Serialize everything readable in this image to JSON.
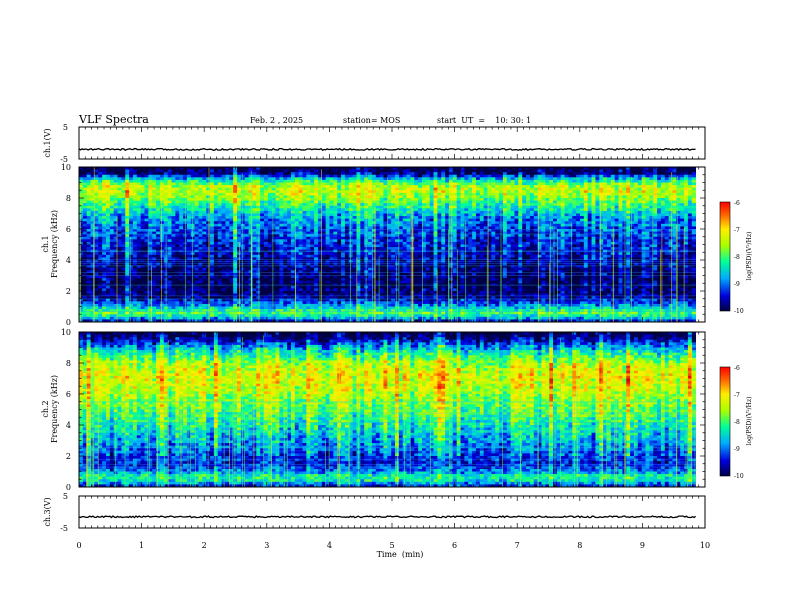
{
  "header": {
    "title": "VLF Spectra",
    "date": "Feb. 2  , 2025",
    "station": "station= MOS",
    "start": "start  UT  =    10: 30: 1"
  },
  "colors": {
    "spectrogram_scale": [
      "#000044",
      "#0000dd",
      "#00aaff",
      "#00ff99",
      "#aaff00",
      "#ffee00",
      "#ff6600",
      "#dd0000"
    ],
    "background": "#ffffff",
    "frame": "#000000"
  },
  "chart_data": [
    {
      "type": "line",
      "panel": "ch1-waveform",
      "ylabel": "ch.1(V)",
      "ylim": [
        -5,
        5
      ],
      "yticks": [
        "5",
        "-5"
      ],
      "x": [
        0,
        1,
        2,
        3,
        4,
        5,
        6,
        7,
        8,
        9,
        9.85
      ],
      "values": [
        -2,
        -2,
        -2,
        -2,
        -2,
        -2,
        -2,
        -2,
        -2,
        -2,
        -2
      ]
    },
    {
      "type": "heatmap",
      "panel": "ch1-spectrogram",
      "ylabel": "ch.1\nFrequency  (kHz)",
      "ylim": [
        0,
        10
      ],
      "yticks": [
        "0",
        "2",
        "4",
        "6",
        "8",
        "10"
      ],
      "xlim": [
        0,
        10
      ],
      "data_xmax": 9.85,
      "colorbar": {
        "label": "log(PSD)(V²/Hz)",
        "ticks": [
          "-6",
          "-7",
          "-8",
          "-9",
          "-10"
        ],
        "range": [
          -10,
          -6
        ]
      },
      "profile": [
        {
          "f": 0.0,
          "v": -9.6
        },
        {
          "f": 0.3,
          "v": -8.6
        },
        {
          "f": 0.6,
          "v": -8.0
        },
        {
          "f": 0.9,
          "v": -8.6
        },
        {
          "f": 1.2,
          "v": -9.1
        },
        {
          "f": 1.6,
          "v": -9.7
        },
        {
          "f": 2.5,
          "v": -9.9
        },
        {
          "f": 4.0,
          "v": -9.6
        },
        {
          "f": 5.0,
          "v": -9.3
        },
        {
          "f": 6.0,
          "v": -9.1
        },
        {
          "f": 6.8,
          "v": -8.8
        },
        {
          "f": 7.4,
          "v": -8.3
        },
        {
          "f": 7.9,
          "v": -7.9
        },
        {
          "f": 8.4,
          "v": -7.5
        },
        {
          "f": 8.8,
          "v": -7.6
        },
        {
          "f": 9.2,
          "v": -8.5
        },
        {
          "f": 9.6,
          "v": -9.8
        },
        {
          "f": 10.0,
          "v": -10
        }
      ]
    },
    {
      "type": "heatmap",
      "panel": "ch2-spectrogram",
      "ylabel": "ch.2\nFrequency  (kHz)",
      "ylim": [
        0,
        10
      ],
      "yticks": [
        "0",
        "2",
        "4",
        "6",
        "8",
        "10"
      ],
      "xlim": [
        0,
        10
      ],
      "data_xmax": 9.85,
      "colorbar": {
        "label": "log(PSD)(V²/Hz)",
        "ticks": [
          "-6",
          "-7",
          "-8",
          "-9",
          "-10"
        ],
        "range": [
          -10,
          -6
        ]
      },
      "profile": [
        {
          "f": 0.0,
          "v": -9.5
        },
        {
          "f": 0.4,
          "v": -8.5
        },
        {
          "f": 0.7,
          "v": -8.3
        },
        {
          "f": 1.0,
          "v": -9.0
        },
        {
          "f": 1.5,
          "v": -9.4
        },
        {
          "f": 2.5,
          "v": -9.0
        },
        {
          "f": 3.5,
          "v": -8.6
        },
        {
          "f": 4.5,
          "v": -8.2
        },
        {
          "f": 5.5,
          "v": -7.8
        },
        {
          "f": 6.5,
          "v": -7.5
        },
        {
          "f": 7.2,
          "v": -7.3
        },
        {
          "f": 8.0,
          "v": -7.7
        },
        {
          "f": 8.8,
          "v": -8.5
        },
        {
          "f": 9.3,
          "v": -9.3
        },
        {
          "f": 9.7,
          "v": -9.9
        },
        {
          "f": 10.0,
          "v": -10
        }
      ]
    },
    {
      "type": "line",
      "panel": "ch3-waveform",
      "ylabel": "ch.3(V)",
      "ylim": [
        -5,
        5
      ],
      "yticks": [
        "5",
        "-5"
      ],
      "xlabel": "Time  (min)",
      "xticks": [
        "0",
        "1",
        "2",
        "3",
        "4",
        "5",
        "6",
        "7",
        "8",
        "9",
        "10"
      ],
      "xlim": [
        0,
        10
      ],
      "x": [
        0,
        1,
        2,
        3,
        4,
        5,
        6,
        7,
        8,
        9,
        9.85
      ],
      "values": [
        -1.5,
        -1.5,
        -1.5,
        -1.5,
        -1.5,
        -1.5,
        -1.5,
        -1.5,
        -1.5,
        -1.5,
        -1.5
      ]
    }
  ]
}
